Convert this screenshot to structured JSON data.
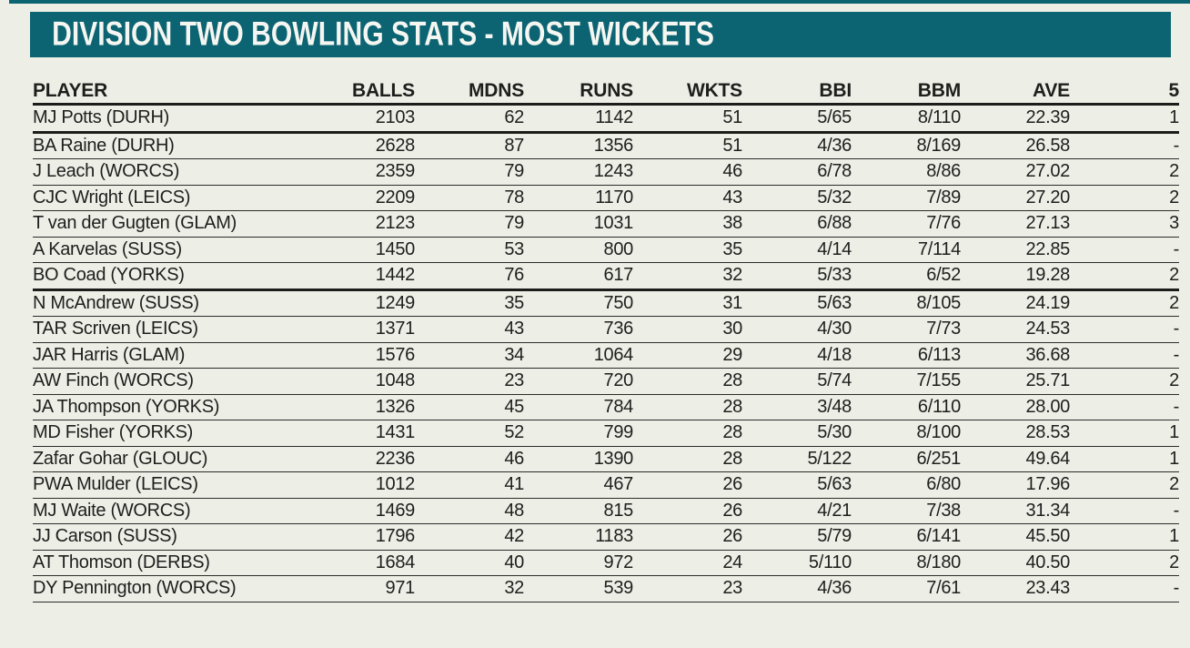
{
  "colors": {
    "accent_teal": "#0c6472",
    "background": "#edefe7",
    "title_text": "#f5f6f1",
    "body_text": "#1e1e1c",
    "rule_line": "#2b2b29"
  },
  "header": {
    "title": "DIVISION TWO BOWLING STATS - MOST WICKETS"
  },
  "table": {
    "columns": [
      "PLAYER",
      "BALLS",
      "MDNS",
      "RUNS",
      "WKTS",
      "BBI",
      "BBM",
      "AVE",
      "5"
    ],
    "rows": [
      [
        "MJ Potts (DURH)",
        "2103",
        "62",
        "1142",
        "51",
        "5/65",
        "8/110",
        "22.39",
        "1"
      ],
      [
        "BA Raine (DURH)",
        "2628",
        "87",
        "1356",
        "51",
        "4/36",
        "8/169",
        "26.58",
        "-"
      ],
      [
        "J Leach (WORCS)",
        "2359",
        "79",
        "1243",
        "46",
        "6/78",
        "8/86",
        "27.02",
        "2"
      ],
      [
        "CJC Wright (LEICS)",
        "2209",
        "78",
        "1170",
        "43",
        "5/32",
        "7/89",
        "27.20",
        "2"
      ],
      [
        "T van der Gugten (GLAM)",
        "2123",
        "79",
        "1031",
        "38",
        "6/88",
        "7/76",
        "27.13",
        "3"
      ],
      [
        "A Karvelas (SUSS)",
        "1450",
        "53",
        "800",
        "35",
        "4/14",
        "7/114",
        "22.85",
        "-"
      ],
      [
        "BO Coad (YORKS)",
        "1442",
        "76",
        "617",
        "32",
        "5/33",
        "6/52",
        "19.28",
        "2"
      ],
      [
        "N McAndrew (SUSS)",
        "1249",
        "35",
        "750",
        "31",
        "5/63",
        "8/105",
        "24.19",
        "2"
      ],
      [
        "TAR Scriven (LEICS)",
        "1371",
        "43",
        "736",
        "30",
        "4/30",
        "7/73",
        "24.53",
        "-"
      ],
      [
        "JAR Harris (GLAM)",
        "1576",
        "34",
        "1064",
        "29",
        "4/18",
        "6/113",
        "36.68",
        "-"
      ],
      [
        "AW Finch (WORCS)",
        "1048",
        "23",
        "720",
        "28",
        "5/74",
        "7/155",
        "25.71",
        "2"
      ],
      [
        "JA Thompson (YORKS)",
        "1326",
        "45",
        "784",
        "28",
        "3/48",
        "6/110",
        "28.00",
        "-"
      ],
      [
        "MD Fisher (YORKS)",
        "1431",
        "52",
        "799",
        "28",
        "5/30",
        "8/100",
        "28.53",
        "1"
      ],
      [
        "Zafar Gohar (GLOUC)",
        "2236",
        "46",
        "1390",
        "28",
        "5/122",
        "6/251",
        "49.64",
        "1"
      ],
      [
        "PWA Mulder (LEICS)",
        "1012",
        "41",
        "467",
        "26",
        "5/63",
        "6/80",
        "17.96",
        "2"
      ],
      [
        "MJ Waite (WORCS)",
        "1469",
        "48",
        "815",
        "26",
        "4/21",
        "7/38",
        "31.34",
        "-"
      ],
      [
        "JJ Carson (SUSS)",
        "1796",
        "42",
        "1183",
        "26",
        "5/79",
        "6/141",
        "45.50",
        "1"
      ],
      [
        "AT Thomson (DERBS)",
        "1684",
        "40",
        "972",
        "24",
        "5/110",
        "8/180",
        "40.50",
        "2"
      ],
      [
        "DY Pennington (WORCS)",
        "971",
        "32",
        "539",
        "23",
        "4/36",
        "7/61",
        "23.43",
        "-"
      ]
    ],
    "thick_divider_after_row_indexes": [
      0,
      6
    ]
  }
}
